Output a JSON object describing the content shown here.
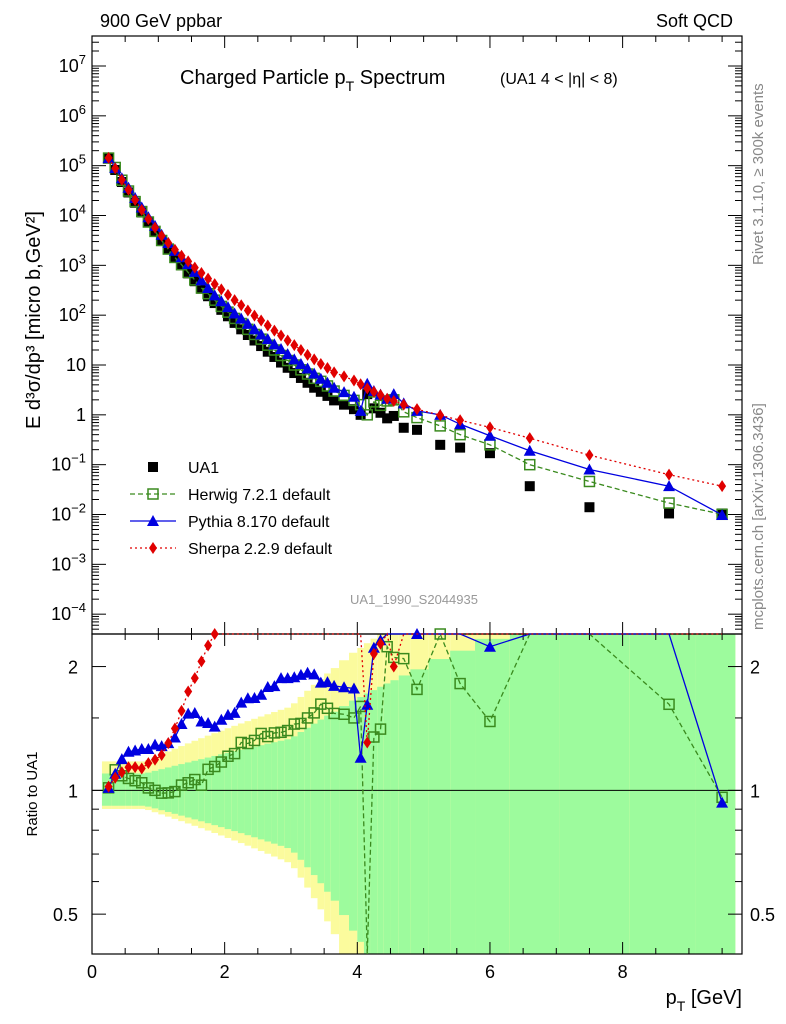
{
  "header": {
    "left": "900 GeV ppbar",
    "right": "Soft QCD"
  },
  "title": {
    "main_pre": "Charged Particle p",
    "main_sub": "T",
    "main_post": " Spectrum",
    "cut_pre": "(UA1   4 < ",
    "cut_eta": "η",
    "cut_post": "| < 8)"
  },
  "side_text": {
    "rivet": "Rivet 3.1.10, ≥ 300k events",
    "mcplots": "mcplots.cern.ch [arXiv:1306.3436]"
  },
  "analysis_id": "UA1_1990_S2044935",
  "axes": {
    "ylabel_main": "E d³σ/dp³ [micro b,GeV²]",
    "ylabel_ratio": "Ratio to UA1",
    "xlabel_main": "p",
    "xlabel_sub": "T",
    "xlabel_unit": " [GeV]"
  },
  "colors": {
    "data": "#000000",
    "herwig": "#3a8a1e",
    "pythia": "#0000e0",
    "sherpa": "#e00000",
    "band_inner": "#9dfb9d",
    "band_outer": "#fbfb9d"
  },
  "legend": [
    {
      "key": "data",
      "label": "UA1"
    },
    {
      "key": "herwig",
      "label": "Herwig 7.2.1 default"
    },
    {
      "key": "pythia",
      "label": "Pythia 8.170 default"
    },
    {
      "key": "sherpa",
      "label": "Sherpa 2.2.9 default"
    }
  ],
  "chart_data": {
    "type": "scatter",
    "title": "Charged Particle pT Spectrum (UA1 4 < |η| < 8)",
    "xlabel": "pT [GeV]",
    "ylabel": "E d3σ/dp3 [micro b,GeV2]",
    "xlim": [
      0,
      9.8
    ],
    "ylim": [
      4e-05,
      40000000
    ],
    "yscale": "log",
    "ratio_ylim": [
      0.4,
      2.4
    ],
    "x_ticks": [
      "0",
      "2",
      "4",
      "6",
      "8"
    ],
    "y_ticks": [
      "10^-4",
      "10^-3",
      "10^-2",
      "10^-1",
      "1",
      "10",
      "10^2",
      "10^3",
      "10^4",
      "10^5",
      "10^6",
      "10^7"
    ],
    "ratio_ticks": [
      "0.5",
      "1",
      "2"
    ],
    "x": [
      0.25,
      0.35,
      0.45,
      0.55,
      0.65,
      0.75,
      0.85,
      0.95,
      1.05,
      1.15,
      1.25,
      1.35,
      1.45,
      1.55,
      1.65,
      1.75,
      1.85,
      1.95,
      2.05,
      2.15,
      2.25,
      2.35,
      2.45,
      2.55,
      2.65,
      2.75,
      2.85,
      2.95,
      3.05,
      3.15,
      3.25,
      3.35,
      3.45,
      3.55,
      3.65,
      3.8,
      3.95,
      4.05,
      4.15,
      4.25,
      4.35,
      4.45,
      4.55,
      4.7,
      4.9,
      5.25,
      5.55,
      6.0,
      6.6,
      7.5,
      8.7,
      9.5
    ],
    "series": [
      {
        "name": "UA1",
        "values": [
          140000,
          82000,
          47000,
          29000,
          18000,
          11500,
          7300,
          4800,
          3200,
          2150,
          1450,
          1000,
          690,
          480,
          340,
          240,
          175,
          128,
          95,
          70,
          52,
          40,
          31,
          24,
          18.5,
          14.5,
          11.2,
          8.8,
          6.9,
          5.5,
          4.4,
          3.5,
          2.9,
          2.4,
          1.95,
          1.6,
          1.3,
          1.0,
          2.6,
          1.35,
          1.1,
          0.85,
          0.95,
          0.55,
          0.5,
          0.25,
          0.22,
          0.17,
          0.037,
          0.014,
          0.0105,
          0.0105
        ]
      },
      {
        "name": "Herwig 7.2.1 default",
        "values": [
          142000,
          92000,
          51000,
          31000,
          19000,
          12000,
          7400,
          4800,
          3150,
          2120,
          1440,
          1030,
          720,
          510,
          350,
          270,
          200,
          150,
          115,
          86,
          68,
          52,
          41,
          33,
          25,
          20,
          15.5,
          12.3,
          10,
          8,
          6.6,
          5.4,
          4.7,
          3.8,
          3.0,
          2.45,
          1.95,
          1.6,
          1.0,
          1.82,
          1.55,
          1.9,
          2.0,
          1.15,
          0.88,
          0.6,
          0.4,
          0.25,
          0.1,
          0.046,
          0.017,
          0.0101
        ]
      },
      {
        "name": "Pythia 8.170 default",
        "values": [
          142000,
          90000,
          56000,
          36000,
          22500,
          14500,
          9200,
          6200,
          4100,
          2800,
          1950,
          1450,
          1060,
          740,
          500,
          350,
          250,
          190,
          145,
          108,
          85,
          67,
          52,
          41,
          33,
          26,
          21,
          16.5,
          13,
          10.5,
          8.5,
          6.7,
          5.3,
          4.4,
          3.5,
          2.85,
          2.3,
          1.2,
          4.2,
          3.0,
          2.55,
          2.1,
          2.6,
          1.7,
          1.2,
          1.0,
          0.65,
          0.38,
          0.19,
          0.08,
          0.037,
          0.0098
        ]
      },
      {
        "name": "Sherpa 2.2.9 default",
        "values": [
          143000,
          88000,
          52000,
          33000,
          20500,
          13000,
          8500,
          5700,
          3900,
          2800,
          2050,
          1560,
          1200,
          900,
          700,
          540,
          420,
          330,
          255,
          200,
          158,
          124,
          98,
          78,
          62,
          49,
          39,
          31,
          25,
          20,
          16,
          13,
          10.5,
          8.7,
          7.1,
          5.9,
          4.9,
          4.1,
          3.4,
          2.9,
          2.5,
          2.1,
          1.9,
          1.6,
          1.3,
          0.98,
          0.78,
          0.56,
          0.34,
          0.155,
          0.063,
          0.037
        ]
      }
    ]
  }
}
